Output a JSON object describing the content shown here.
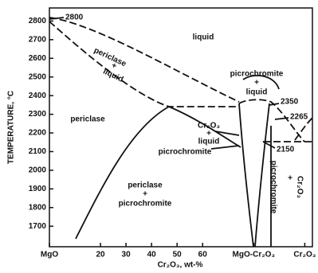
{
  "chart_data": {
    "type": "phase_diagram",
    "y_label": "TEMPERATURE, °C",
    "x_label": "Cr₂O₃, wt-%",
    "ylim": [
      1590,
      2870
    ],
    "yticks": [
      1700,
      1800,
      1900,
      2000,
      2100,
      2200,
      2300,
      2400,
      2500,
      2600,
      2700,
      2800
    ],
    "xlim": [
      0,
      103
    ],
    "xticks": [
      {
        "value": 0,
        "label": "MgO"
      },
      20,
      30,
      40,
      50,
      60,
      {
        "value": 80,
        "label": "MgO-Cr₂O₃"
      },
      {
        "value": 100,
        "label": "Cr₂O₃"
      }
    ],
    "regions": [
      "liquid",
      "periclase",
      "+",
      "liquid",
      "picrochromite",
      "+",
      "liquid",
      "periclase",
      "Cr₂O₃",
      "+",
      "liquid",
      "picrochromite",
      "periclase",
      "+",
      "picrochromite",
      "picrochromite",
      "+",
      "Cr₂O₃"
    ],
    "annotations": [
      "2800",
      "2350",
      "2265",
      "2150"
    ]
  }
}
